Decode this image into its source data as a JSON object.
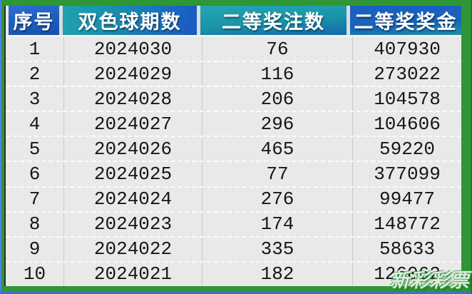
{
  "table": {
    "headers": [
      {
        "label": "序号"
      },
      {
        "label": "双色球期数"
      },
      {
        "label": "二等奖注数"
      },
      {
        "label": "二等奖奖金"
      }
    ],
    "rows": [
      {
        "seq": "1",
        "period": "2024030",
        "bets": "76",
        "prize": "407930"
      },
      {
        "seq": "2",
        "period": "2024029",
        "bets": "116",
        "prize": "273022"
      },
      {
        "seq": "3",
        "period": "2024028",
        "bets": "206",
        "prize": "104578"
      },
      {
        "seq": "4",
        "period": "2024027",
        "bets": "296",
        "prize": "104606"
      },
      {
        "seq": "5",
        "period": "2024026",
        "bets": "465",
        "prize": "59220"
      },
      {
        "seq": "6",
        "period": "2024025",
        "bets": "77",
        "prize": "377099"
      },
      {
        "seq": "7",
        "period": "2024024",
        "bets": "276",
        "prize": "99477"
      },
      {
        "seq": "8",
        "period": "2024023",
        "bets": "174",
        "prize": "148772"
      },
      {
        "seq": "9",
        "period": "2024022",
        "bets": "335",
        "prize": "58633"
      },
      {
        "seq": "10",
        "period": "2024021",
        "bets": "182",
        "prize": "126062"
      }
    ]
  },
  "watermark": {
    "text": "新彩彩票"
  },
  "colors": {
    "frame_green": "#2e9634",
    "edge_blue": "#3f6fd1",
    "header_blue": "#1a5cc0",
    "header_teal": "#1fa2ad",
    "row_background": "#e9e9e9",
    "body_text": "#161616",
    "header_text": "#ffffff"
  }
}
